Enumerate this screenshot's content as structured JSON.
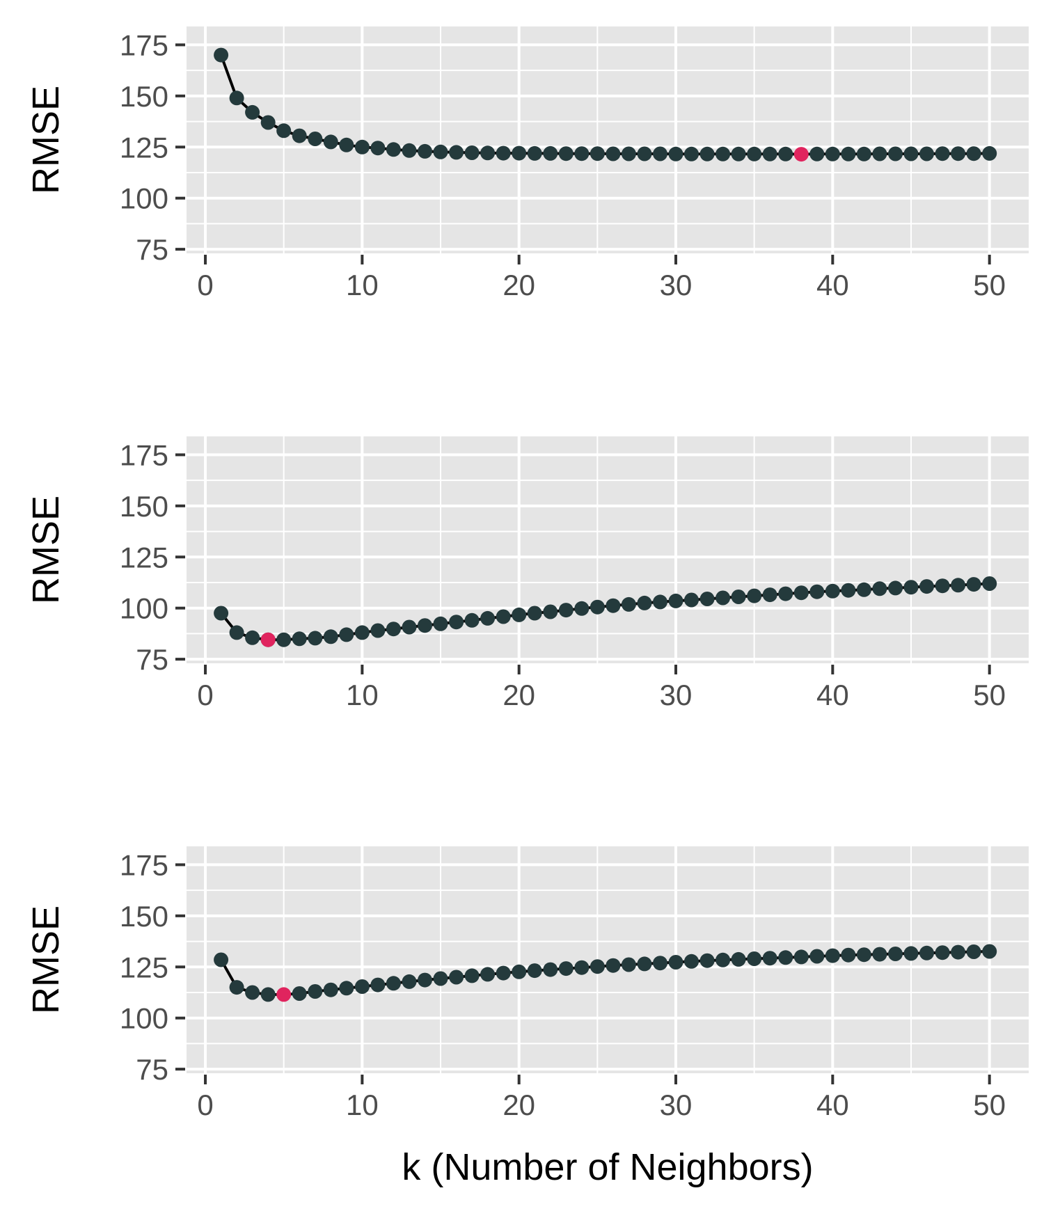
{
  "chart_data": [
    {
      "type": "line",
      "xlabel": "",
      "ylabel": "RMSE",
      "xlim": [
        -1.2,
        52.5
      ],
      "ylim": [
        73,
        184
      ],
      "x_ticks": [
        0,
        10,
        20,
        30,
        40,
        50
      ],
      "x_tick_labels": [
        "0",
        "10",
        "20",
        "30",
        "40",
        "50"
      ],
      "y_ticks": [
        75,
        100,
        125,
        150,
        175
      ],
      "y_tick_labels": [
        "75",
        "100",
        "125",
        "150",
        "175"
      ],
      "grid": true,
      "x": [
        1,
        2,
        3,
        4,
        5,
        6,
        7,
        8,
        9,
        10,
        11,
        12,
        13,
        14,
        15,
        16,
        17,
        18,
        19,
        20,
        21,
        22,
        23,
        24,
        25,
        26,
        27,
        28,
        29,
        30,
        31,
        32,
        33,
        34,
        35,
        36,
        37,
        38,
        39,
        40,
        41,
        42,
        43,
        44,
        45,
        46,
        47,
        48,
        49,
        50
      ],
      "series": [
        {
          "values": [
            170,
            149,
            142,
            137,
            133,
            130.5,
            129,
            127.5,
            126,
            125,
            124.5,
            123.8,
            123.3,
            122.9,
            122.6,
            122.4,
            122.2,
            122.1,
            122,
            122,
            121.9,
            121.9,
            121.8,
            121.8,
            121.8,
            121.7,
            121.7,
            121.7,
            121.7,
            121.6,
            121.6,
            121.6,
            121.6,
            121.6,
            121.6,
            121.6,
            121.6,
            121.5,
            121.6,
            121.6,
            121.6,
            121.6,
            121.7,
            121.7,
            121.7,
            121.7,
            121.8,
            121.8,
            121.8,
            121.9
          ],
          "highlight_index": 37
        }
      ]
    },
    {
      "type": "line",
      "xlabel": "",
      "ylabel": "RMSE",
      "xlim": [
        -1.2,
        52.5
      ],
      "ylim": [
        73,
        184
      ],
      "x_ticks": [
        0,
        10,
        20,
        30,
        40,
        50
      ],
      "x_tick_labels": [
        "0",
        "10",
        "20",
        "30",
        "40",
        "50"
      ],
      "y_ticks": [
        75,
        100,
        125,
        150,
        175
      ],
      "y_tick_labels": [
        "75",
        "100",
        "125",
        "150",
        "175"
      ],
      "grid": true,
      "x": [
        1,
        2,
        3,
        4,
        5,
        6,
        7,
        8,
        9,
        10,
        11,
        12,
        13,
        14,
        15,
        16,
        17,
        18,
        19,
        20,
        21,
        22,
        23,
        24,
        25,
        26,
        27,
        28,
        29,
        30,
        31,
        32,
        33,
        34,
        35,
        36,
        37,
        38,
        39,
        40,
        41,
        42,
        43,
        44,
        45,
        46,
        47,
        48,
        49,
        50
      ],
      "series": [
        {
          "values": [
            97.5,
            88,
            85.5,
            84.5,
            84.5,
            85,
            85.3,
            86,
            87,
            88,
            89,
            89.8,
            90.7,
            91.5,
            92.3,
            93.2,
            94,
            95,
            95.8,
            96.7,
            97.5,
            98.2,
            99,
            99.8,
            100.5,
            101.2,
            101.8,
            102.5,
            103,
            103.5,
            104,
            104.5,
            105,
            105.5,
            106,
            106.5,
            107,
            107.5,
            108,
            108.3,
            108.7,
            109,
            109.5,
            109.8,
            110.2,
            110.6,
            110.9,
            111.2,
            111.6,
            112
          ]
        },
        {
          "values": [
            null,
            null,
            null,
            84.5,
            null,
            null,
            null,
            null,
            null,
            null,
            null,
            null,
            null,
            null,
            null,
            null,
            null,
            null,
            null,
            null,
            null,
            null,
            null,
            null,
            null,
            null,
            null,
            null,
            null,
            null,
            null,
            null,
            null,
            null,
            null,
            null,
            null,
            null,
            null,
            null,
            null,
            null,
            null,
            null,
            null,
            null,
            null,
            null,
            null,
            null
          ],
          "highlight_index": 3
        }
      ]
    },
    {
      "type": "line",
      "xlabel": "k (Number of Neighbors)",
      "ylabel": "RMSE",
      "xlim": [
        -1.2,
        52.5
      ],
      "ylim": [
        73,
        184
      ],
      "x_ticks": [
        0,
        10,
        20,
        30,
        40,
        50
      ],
      "x_tick_labels": [
        "0",
        "10",
        "20",
        "30",
        "40",
        "50"
      ],
      "y_ticks": [
        75,
        100,
        125,
        150,
        175
      ],
      "y_tick_labels": [
        "75",
        "100",
        "125",
        "150",
        "175"
      ],
      "grid": true,
      "x": [
        1,
        2,
        3,
        4,
        5,
        6,
        7,
        8,
        9,
        10,
        11,
        12,
        13,
        14,
        15,
        16,
        17,
        18,
        19,
        20,
        21,
        22,
        23,
        24,
        25,
        26,
        27,
        28,
        29,
        30,
        31,
        32,
        33,
        34,
        35,
        36,
        37,
        38,
        39,
        40,
        41,
        42,
        43,
        44,
        45,
        46,
        47,
        48,
        49,
        50
      ],
      "series": [
        {
          "values": [
            128.5,
            115,
            112.5,
            111.5,
            111.5,
            112,
            113,
            113.8,
            114.6,
            115.4,
            116.2,
            117,
            117.8,
            118.6,
            119.3,
            120,
            120.7,
            121.4,
            122,
            122.6,
            123.2,
            123.7,
            124.2,
            124.7,
            125.2,
            125.7,
            126.1,
            126.5,
            126.9,
            127.3,
            127.7,
            128.1,
            128.4,
            128.7,
            129,
            129.3,
            129.6,
            129.9,
            130.2,
            130.5,
            130.8,
            131,
            131.2,
            131.4,
            131.6,
            131.8,
            132,
            132.2,
            132.4,
            132.6
          ],
          "highlight_index": 4
        }
      ]
    }
  ],
  "colors": {
    "point": "#243a3c",
    "line": "#000000",
    "highlight": "#e0245e",
    "panel_background": "#e5e5e5",
    "grid": "#ffffff",
    "tick_text": "#4d4d4d"
  }
}
